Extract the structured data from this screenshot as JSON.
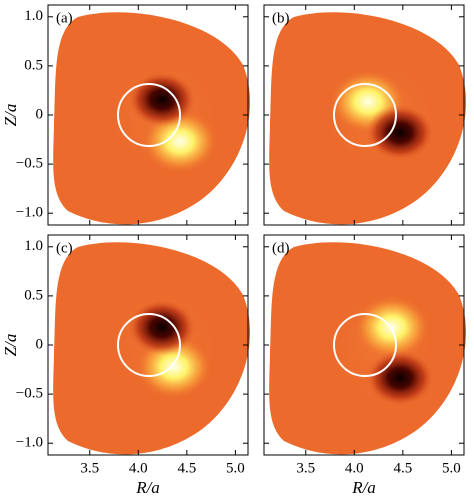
{
  "chart_data": [
    {
      "type": "image",
      "label": "(a)",
      "color": "#ec6a2c",
      "xlim": [
        3.07,
        5.13
      ],
      "ylim": [
        -1.12,
        1.12
      ],
      "xticks": [
        3.5,
        4,
        4.5,
        5
      ],
      "yticks": [
        {
          "value": -1,
          "label": "−1.0"
        },
        {
          "value": -0.5,
          "label": "−0.5"
        },
        0,
        0.5,
        {
          "value": 1,
          "label": "1.0"
        }
      ],
      "ylabel": "Z/a"
    },
    {
      "type": "image",
      "label": "(b)",
      "color": "#ec6a2c",
      "xlim": [
        3.07,
        5.13
      ],
      "ylim": [
        -1.12,
        1.12
      ],
      "xticks": [
        3.5,
        4,
        4.5,
        5
      ],
      "yticks": [
        -1,
        -0.5,
        0,
        0.5,
        1
      ]
    },
    {
      "type": "image",
      "label": "(c)",
      "color": "#ec6a2c",
      "xlim": [
        3.07,
        5.13
      ],
      "ylim": [
        -1.12,
        1.12
      ],
      "xticks": [
        3.5,
        {
          "value": 4,
          "label": "4.0"
        },
        4.5,
        {
          "value": 5,
          "label": "5.0"
        }
      ],
      "yticks": [
        {
          "value": -1,
          "label": "−1.0"
        },
        {
          "value": -0.5,
          "label": "−0.5"
        },
        0,
        0.5,
        {
          "value": 1,
          "label": "1.0"
        }
      ],
      "xlabel": "R/a",
      "ylabel": "Z/a"
    },
    {
      "type": "image",
      "label": "(d)",
      "color": "#ec6a2c",
      "xlim": [
        3.07,
        5.13
      ],
      "ylim": [
        -1.12,
        1.12
      ],
      "xticks": [
        3.5,
        {
          "value": 4,
          "label": "4.0"
        },
        4.5,
        {
          "value": 5,
          "label": "5.0"
        }
      ],
      "yticks": [
        -1,
        -0.5,
        0,
        0.5,
        1
      ],
      "xlabel": "R/a"
    }
  ]
}
